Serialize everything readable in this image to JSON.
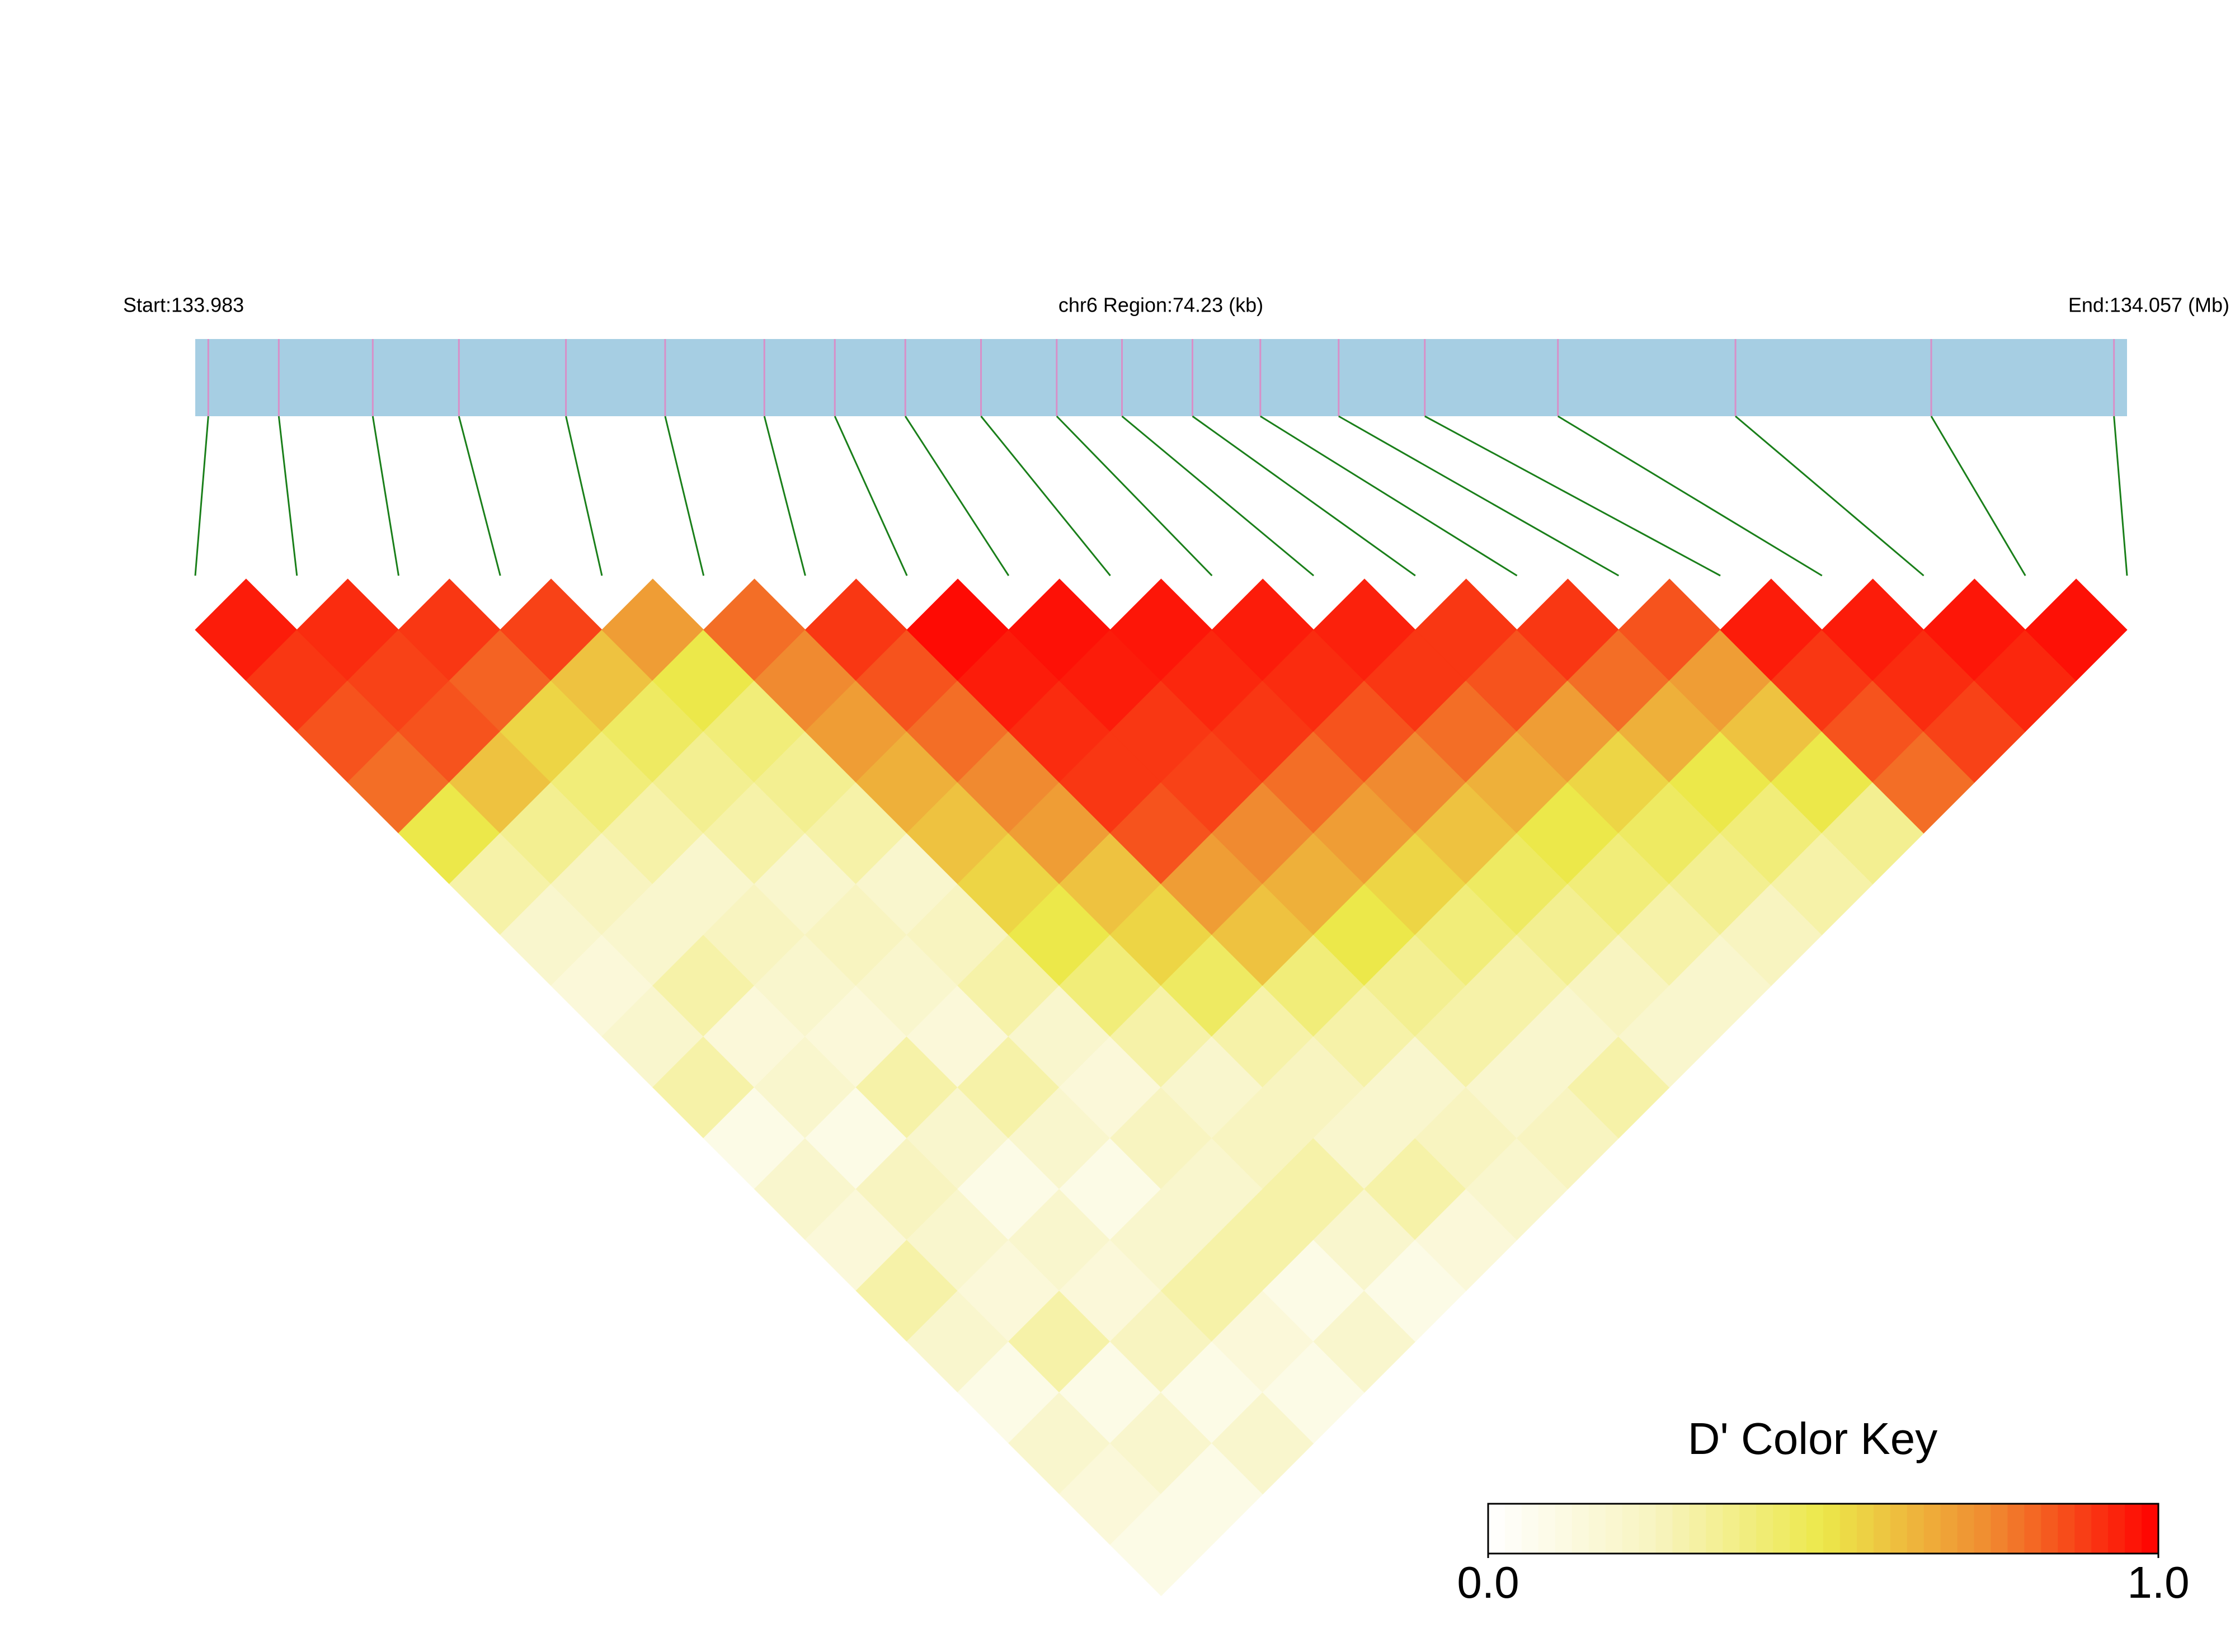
{
  "chart_data": {
    "type": "ld-heatmap",
    "start_label": "Start:133.983",
    "region_label": "chr6 Region:74.23 (kb)",
    "end_label": "End:134.057 (Mb)",
    "xlim": [
      133.983,
      134.057
    ],
    "positions": [
      133.9835,
      133.9862,
      133.9898,
      133.9931,
      133.9972,
      134.001,
      134.0048,
      134.0075,
      134.0102,
      134.0131,
      134.016,
      134.0185,
      134.0212,
      134.0238,
      134.0268,
      134.0301,
      134.0352,
      134.042,
      134.0495,
      134.0565
    ],
    "dprime": [
      [
        0.95,
        0.9,
        0.85,
        0.8,
        0.5,
        0.3,
        0.2,
        0.15,
        0.2,
        0.3,
        0.1,
        0.2,
        0.15,
        0.3,
        0.2,
        0.1,
        0.2,
        0.15,
        0.1
      ],
      [
        0.92,
        0.88,
        0.85,
        0.6,
        0.35,
        0.25,
        0.2,
        0.3,
        0.15,
        0.2,
        0.1,
        0.25,
        0.2,
        0.15,
        0.3,
        0.1,
        0.2,
        0.1
      ],
      [
        0.9,
        0.82,
        0.55,
        0.4,
        0.3,
        0.2,
        0.25,
        0.2,
        0.15,
        0.3,
        0.2,
        0.1,
        0.2,
        0.15,
        0.25,
        0.1,
        0.2
      ],
      [
        0.88,
        0.6,
        0.45,
        0.35,
        0.3,
        0.2,
        0.25,
        0.2,
        0.15,
        0.3,
        0.2,
        0.1,
        0.2,
        0.3,
        0.15,
        0.1
      ],
      [
        0.7,
        0.5,
        0.4,
        0.35,
        0.3,
        0.2,
        0.25,
        0.3,
        0.2,
        0.15,
        0.25,
        0.2,
        0.3,
        0.1,
        0.2
      ],
      [
        0.8,
        0.75,
        0.7,
        0.65,
        0.6,
        0.55,
        0.5,
        0.4,
        0.3,
        0.2,
        0.25,
        0.3,
        0.2,
        0.1
      ],
      [
        0.9,
        0.85,
        0.8,
        0.75,
        0.7,
        0.6,
        0.55,
        0.45,
        0.3,
        0.25,
        0.2,
        0.3,
        0.15
      ],
      [
        0.98,
        0.95,
        0.92,
        0.9,
        0.85,
        0.7,
        0.6,
        0.4,
        0.3,
        0.2,
        0.25,
        0.2
      ],
      [
        0.97,
        0.95,
        0.9,
        0.88,
        0.75,
        0.65,
        0.5,
        0.35,
        0.3,
        0.2,
        0.25
      ],
      [
        0.96,
        0.93,
        0.9,
        0.8,
        0.7,
        0.55,
        0.4,
        0.3,
        0.2,
        0.3
      ],
      [
        0.95,
        0.92,
        0.85,
        0.75,
        0.6,
        0.45,
        0.35,
        0.25,
        0.2
      ],
      [
        0.94,
        0.9,
        0.8,
        0.65,
        0.5,
        0.4,
        0.3,
        0.2
      ],
      [
        0.9,
        0.85,
        0.7,
        0.55,
        0.45,
        0.35,
        0.25
      ],
      [
        0.9,
        0.8,
        0.65,
        0.5,
        0.4,
        0.3
      ],
      [
        0.85,
        0.7,
        0.6,
        0.5,
        0.35
      ],
      [
        0.95,
        0.9,
        0.85,
        0.8
      ],
      [
        0.95,
        0.92,
        0.88
      ],
      [
        0.96,
        0.93
      ],
      [
        0.97
      ]
    ],
    "track_color": "#a6cee3",
    "snp_line_color": "#d88fc8",
    "connector_color": "#1a7f1a",
    "colorbar": {
      "title": "D' Color Key",
      "lim": [
        0,
        1
      ],
      "ticks": [
        {
          "value": 0,
          "label": "0.0"
        },
        {
          "value": 1,
          "label": "1.0"
        }
      ],
      "colors": [
        "#ffffff",
        "#f8f4c0",
        "#ece84a",
        "#f08a30",
        "#ff0000"
      ]
    }
  }
}
